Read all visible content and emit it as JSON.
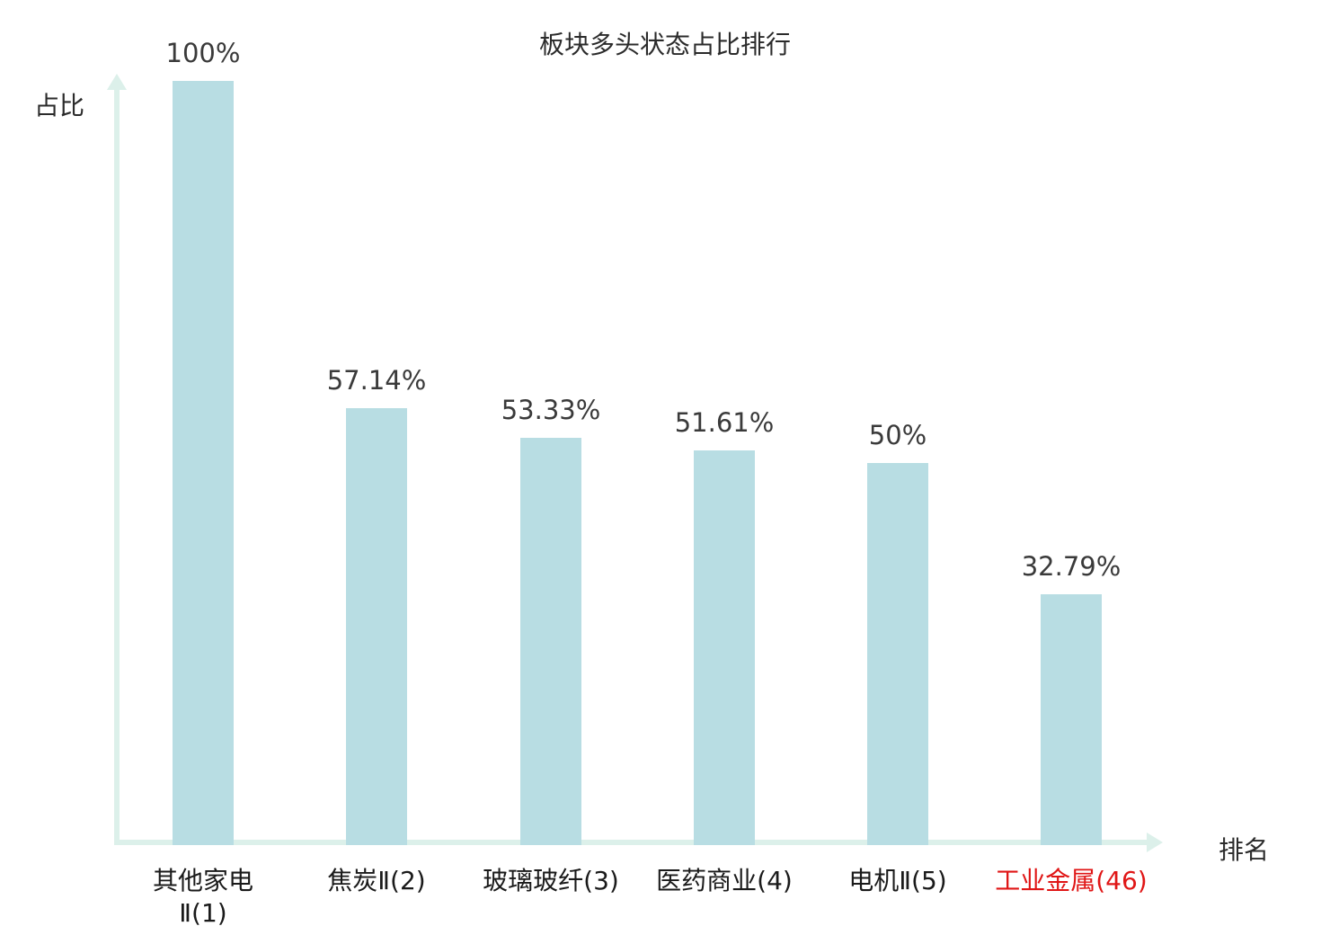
{
  "chart_data": {
    "type": "bar",
    "title": "板块多头状态占比排行",
    "xlabel": "排名",
    "ylabel": "占比",
    "ylim": [
      0,
      100
    ],
    "grid": false,
    "legend": "none",
    "categories": [
      "其他家电Ⅱ(1)",
      "焦炭Ⅱ(2)",
      "玻璃玻纤(3)",
      "医药商业(4)",
      "电机Ⅱ(5)",
      "工业金属(46)"
    ],
    "category_lines": [
      [
        "其他家电",
        "Ⅱ(1)"
      ],
      [
        "焦炭Ⅱ(2)"
      ],
      [
        "玻璃玻纤(3)"
      ],
      [
        "医药商业(4)"
      ],
      [
        "电机Ⅱ(5)"
      ],
      [
        "工业金属(46)"
      ]
    ],
    "values": [
      100,
      57.14,
      53.33,
      51.61,
      50,
      32.79
    ],
    "value_labels": [
      "100%",
      "57.14%",
      "53.33%",
      "51.61%",
      "50%",
      "32.79%"
    ],
    "highlight_index": 5,
    "colors": {
      "bar": "#b8dde3",
      "axis": "#dcf0ea",
      "value_label": "#3a3a3a",
      "category_label": "#1a1a1a",
      "highlight_label": "#e01616"
    }
  }
}
